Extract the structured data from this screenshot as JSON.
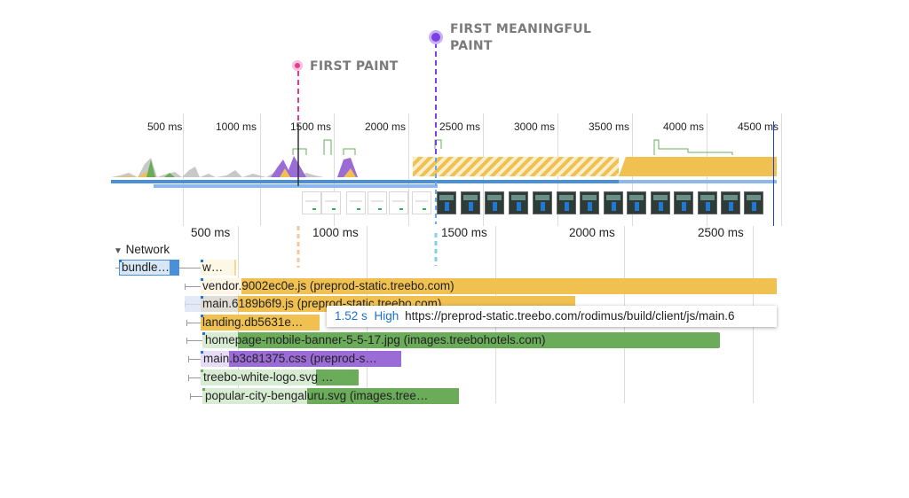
{
  "markers": {
    "first_paint": {
      "label": "FIRST PAINT",
      "color": "#e8388f"
    },
    "first_meaningful_paint": {
      "label_line1": "FIRST MEANINGFUL",
      "label_line2": "PAINT",
      "color": "#7b3fe4"
    }
  },
  "overview_ticks": [
    "500 ms",
    "1000 ms",
    "1500 ms",
    "2000 ms",
    "2500 ms",
    "3000 ms",
    "3500 ms",
    "4000 ms",
    "4500 ms"
  ],
  "timeline_ticks": [
    "500 ms",
    "1000 ms",
    "1500 ms",
    "2000 ms",
    "2500 ms"
  ],
  "network": {
    "section_label": "Network",
    "rows": [
      {
        "label": "bundle…",
        "color": "#4a90d9"
      },
      {
        "label": "w…",
        "color": "#f0c050"
      },
      {
        "label": "vendor.9002ec0e.js (preprod-static.treebo.com)",
        "color": "#f0c050"
      },
      {
        "label": "main.6189b6f9.js (preprod-static.treebo.com)",
        "color": "#f0c050"
      },
      {
        "label": "landing.db5631e…",
        "color": "#f0c050"
      },
      {
        "label": "homepage-mobile-banner-5-5-17.jpg (images.treebohotels.com)",
        "color": "#6aac5a"
      },
      {
        "label": "main.b3c81375.css (preprod-s…",
        "color": "#9b6bd6"
      },
      {
        "label": "treebo-white-logo.svg …",
        "color": "#6aac5a"
      },
      {
        "label": "popular-city-bengaluru.svg (images.tree…",
        "color": "#6aac5a"
      }
    ]
  },
  "tooltip": {
    "duration": "1.52 s",
    "priority": "High",
    "url": "https://preprod-static.treebo.com/rodimus/build/client/js/main.6"
  },
  "colors": {
    "script": "#f0c050",
    "image": "#6aac5a",
    "style": "#9b6bd6",
    "html": "#4a90d9",
    "tooltip_value": "#1a6fd4"
  }
}
